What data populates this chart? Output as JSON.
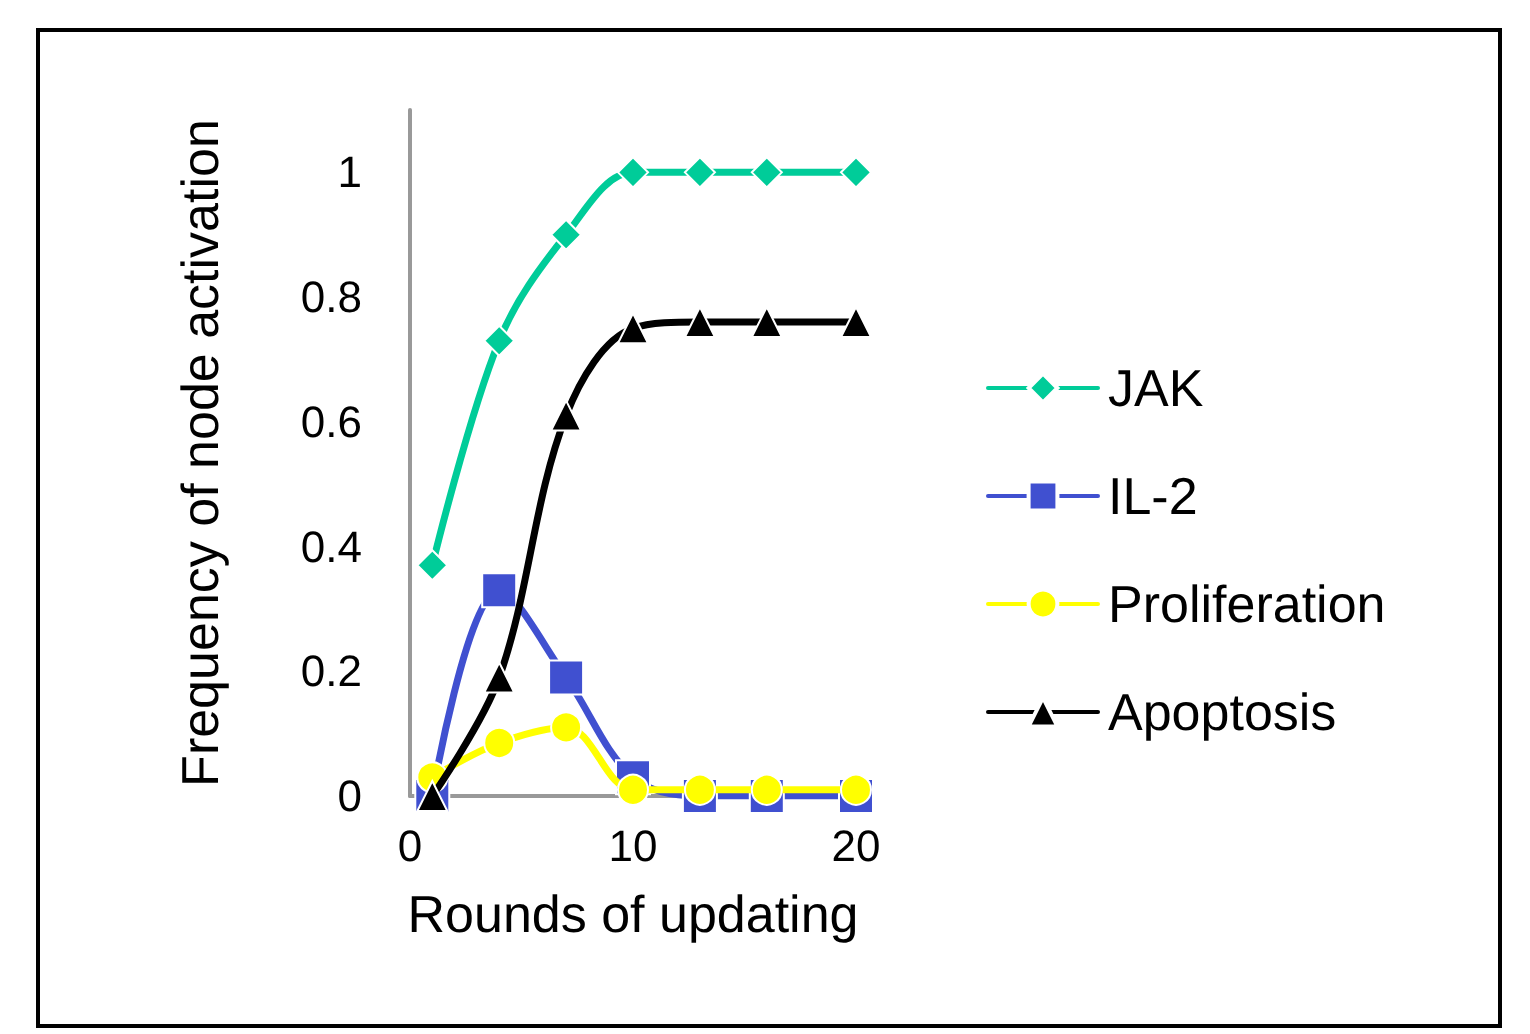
{
  "chart_data": {
    "type": "line",
    "xlabel": "Rounds of updating",
    "ylabel": "Frequency of node activation",
    "x": [
      1,
      4,
      7,
      10,
      13,
      16,
      20
    ],
    "series": [
      {
        "name": "JAK",
        "color": "#00cc99",
        "marker": "diamond",
        "values": [
          0.37,
          0.73,
          0.9,
          1,
          1,
          1,
          1
        ]
      },
      {
        "name": "IL-2",
        "color": "#4050d0",
        "marker": "square",
        "values": [
          0,
          0.33,
          0.19,
          0.03,
          0,
          0,
          0
        ]
      },
      {
        "name": "Proliferation",
        "color": "#ffff00",
        "marker": "circle",
        "values": [
          0.03,
          0.085,
          0.11,
          0.01,
          0.01,
          0.01,
          0.01
        ]
      },
      {
        "name": "Apoptosis",
        "color": "#000000",
        "marker": "triangle",
        "values": [
          0,
          0.19,
          0.61,
          0.75,
          0.76,
          0.76,
          0.76
        ]
      }
    ],
    "xlim": [
      0,
      20
    ],
    "xticks": [
      0,
      10,
      20
    ],
    "ylim": [
      0,
      1.1
    ],
    "yticks": [
      0,
      0.2,
      0.4,
      0.6,
      0.8,
      1
    ],
    "grid": false,
    "legend": "right",
    "line_style": "solid"
  }
}
